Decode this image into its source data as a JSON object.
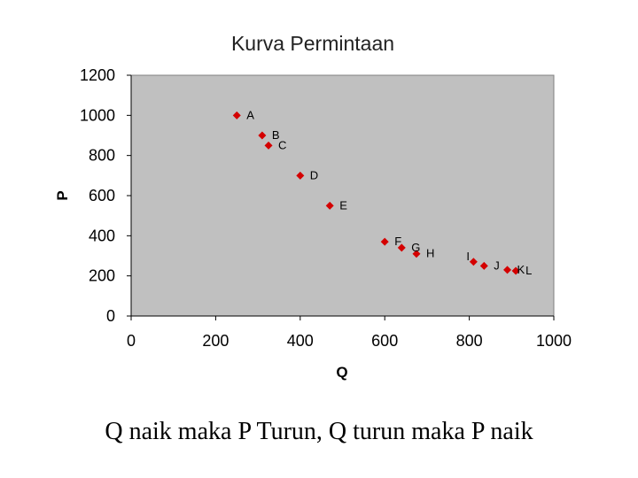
{
  "chart_data": {
    "type": "scatter",
    "title": "Kurva Permintaan",
    "xlabel": "Q",
    "ylabel": "P",
    "xlim": [
      0,
      1000
    ],
    "ylim": [
      0,
      1200
    ],
    "x_ticks": [
      "0",
      "200",
      "400",
      "600",
      "800",
      "1000"
    ],
    "y_ticks": [
      "0",
      "200",
      "400",
      "600",
      "800",
      "1000",
      "1200"
    ],
    "grid": false,
    "marker_color": "#d40000",
    "plot_background": "#c0c0c0",
    "points": [
      {
        "label": "A",
        "x": 250,
        "y": 1000
      },
      {
        "label": "B",
        "x": 310,
        "y": 900
      },
      {
        "label": "C",
        "x": 325,
        "y": 850
      },
      {
        "label": "D",
        "x": 400,
        "y": 700
      },
      {
        "label": "E",
        "x": 470,
        "y": 550
      },
      {
        "label": "F",
        "x": 600,
        "y": 370
      },
      {
        "label": "G",
        "x": 640,
        "y": 340
      },
      {
        "label": "H",
        "x": 675,
        "y": 310
      },
      {
        "label": "I",
        "x": 810,
        "y": 270
      },
      {
        "label": "J",
        "x": 835,
        "y": 250
      },
      {
        "label": "K",
        "x": 890,
        "y": 230
      },
      {
        "label": "L",
        "x": 910,
        "y": 225
      }
    ]
  },
  "caption": "Q naik maka P Turun, Q turun maka P naik"
}
